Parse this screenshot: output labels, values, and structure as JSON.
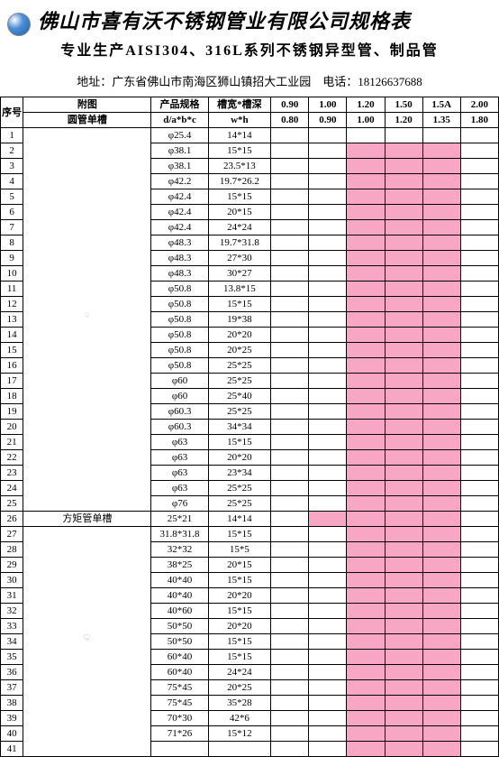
{
  "header": {
    "title": "佛山市喜有沃不锈钢管业有限公司规格表",
    "subtitle": "专业生产AISI304、316L系列不锈钢异型管、制品管",
    "address_label": "地址：",
    "address": "广东省佛山市南海区狮山镇招大工业园",
    "phone_label": "电话：",
    "phone": "18126637688"
  },
  "table": {
    "seq_header": "序号",
    "diagram_header": "附图",
    "spec_header": "产品规格",
    "slot_header": "槽宽*槽深",
    "spec_sub": "d/a*b*c",
    "slot_sub": "w*h",
    "thick_headers_1": [
      "0.90",
      "1.00",
      "1.20",
      "1.50",
      "1.5A",
      "2.00"
    ],
    "thick_headers_2": [
      "0.80",
      "0.90",
      "1.00",
      "1.20",
      "1.35",
      "1.80"
    ],
    "diagram_label_1": "圆管单槽",
    "diagram_label_2": "方矩管单槽",
    "rows": [
      {
        "n": 1,
        "spec": "φ25.4",
        "slot": "14*14",
        "p": [
          0,
          0,
          0,
          0,
          0,
          0
        ]
      },
      {
        "n": 2,
        "spec": "φ38.1",
        "slot": "15*15",
        "p": [
          0,
          0,
          1,
          1,
          1,
          0
        ]
      },
      {
        "n": 3,
        "spec": "φ38.1",
        "slot": "23.5*13",
        "p": [
          0,
          0,
          1,
          1,
          1,
          0
        ]
      },
      {
        "n": 4,
        "spec": "φ42.2",
        "slot": "19.7*26.2",
        "p": [
          0,
          0,
          1,
          1,
          1,
          0
        ]
      },
      {
        "n": 5,
        "spec": "φ42.4",
        "slot": "15*15",
        "p": [
          0,
          0,
          1,
          1,
          1,
          0
        ]
      },
      {
        "n": 6,
        "spec": "φ42.4",
        "slot": "20*15",
        "p": [
          0,
          0,
          1,
          1,
          1,
          0
        ]
      },
      {
        "n": 7,
        "spec": "φ42.4",
        "slot": "24*24",
        "p": [
          0,
          0,
          1,
          1,
          1,
          0
        ]
      },
      {
        "n": 8,
        "spec": "φ48.3",
        "slot": "19.7*31.8",
        "p": [
          0,
          0,
          1,
          1,
          1,
          0
        ]
      },
      {
        "n": 9,
        "spec": "φ48.3",
        "slot": "27*30",
        "p": [
          0,
          0,
          1,
          1,
          1,
          0
        ]
      },
      {
        "n": 10,
        "spec": "φ48.3",
        "slot": "30*27",
        "p": [
          0,
          0,
          1,
          1,
          1,
          0
        ]
      },
      {
        "n": 11,
        "spec": "φ50.8",
        "slot": "13.8*15",
        "p": [
          0,
          0,
          1,
          1,
          1,
          0
        ]
      },
      {
        "n": 12,
        "spec": "φ50.8",
        "slot": "15*15",
        "p": [
          0,
          0,
          1,
          1,
          1,
          0
        ]
      },
      {
        "n": 13,
        "spec": "φ50.8",
        "slot": "19*38",
        "p": [
          0,
          0,
          1,
          1,
          1,
          0
        ]
      },
      {
        "n": 14,
        "spec": "φ50.8",
        "slot": "20*20",
        "p": [
          0,
          0,
          1,
          1,
          1,
          0
        ]
      },
      {
        "n": 15,
        "spec": "φ50.8",
        "slot": "20*25",
        "p": [
          0,
          0,
          1,
          1,
          1,
          0
        ]
      },
      {
        "n": 16,
        "spec": "φ50.8",
        "slot": "25*25",
        "p": [
          0,
          0,
          1,
          1,
          1,
          0
        ]
      },
      {
        "n": 17,
        "spec": "φ60",
        "slot": "25*25",
        "p": [
          0,
          0,
          1,
          1,
          1,
          0
        ]
      },
      {
        "n": 18,
        "spec": "φ60",
        "slot": "25*40",
        "p": [
          0,
          0,
          1,
          1,
          1,
          0
        ]
      },
      {
        "n": 19,
        "spec": "φ60.3",
        "slot": "25*25",
        "p": [
          0,
          0,
          1,
          1,
          1,
          0
        ]
      },
      {
        "n": 20,
        "spec": "φ60.3",
        "slot": "34*34",
        "p": [
          0,
          0,
          1,
          1,
          1,
          0
        ]
      },
      {
        "n": 21,
        "spec": "φ63",
        "slot": "15*15",
        "p": [
          0,
          0,
          1,
          1,
          1,
          0
        ]
      },
      {
        "n": 22,
        "spec": "φ63",
        "slot": "20*20",
        "p": [
          0,
          0,
          1,
          1,
          1,
          0
        ]
      },
      {
        "n": 23,
        "spec": "φ63",
        "slot": "23*34",
        "p": [
          0,
          0,
          1,
          1,
          1,
          0
        ]
      },
      {
        "n": 24,
        "spec": "φ63",
        "slot": "25*25",
        "p": [
          0,
          0,
          1,
          1,
          1,
          0
        ]
      },
      {
        "n": 25,
        "spec": "φ76",
        "slot": "25*25",
        "p": [
          0,
          0,
          1,
          1,
          1,
          0
        ]
      },
      {
        "n": 26,
        "spec": "25*21",
        "slot": "14*14",
        "p": [
          0,
          1,
          1,
          1,
          1,
          0
        ]
      },
      {
        "n": 27,
        "spec": "31.8*31.8",
        "slot": "15*15",
        "p": [
          0,
          0,
          1,
          1,
          1,
          0
        ]
      },
      {
        "n": 28,
        "spec": "32*32",
        "slot": "15*5",
        "p": [
          0,
          0,
          1,
          1,
          1,
          0
        ]
      },
      {
        "n": 29,
        "spec": "38*25",
        "slot": "20*15",
        "p": [
          0,
          0,
          1,
          1,
          1,
          0
        ]
      },
      {
        "n": 30,
        "spec": "40*40",
        "slot": "15*15",
        "p": [
          0,
          0,
          1,
          1,
          1,
          0
        ]
      },
      {
        "n": 31,
        "spec": "40*40",
        "slot": "20*20",
        "p": [
          0,
          0,
          1,
          1,
          1,
          0
        ]
      },
      {
        "n": 32,
        "spec": "40*60",
        "slot": "15*15",
        "p": [
          0,
          0,
          1,
          1,
          1,
          0
        ]
      },
      {
        "n": 33,
        "spec": "50*50",
        "slot": "20*20",
        "p": [
          0,
          0,
          1,
          1,
          1,
          0
        ]
      },
      {
        "n": 34,
        "spec": "50*50",
        "slot": "15*15",
        "p": [
          0,
          0,
          1,
          1,
          1,
          0
        ]
      },
      {
        "n": 35,
        "spec": "60*40",
        "slot": "15*15",
        "p": [
          0,
          0,
          1,
          1,
          1,
          0
        ]
      },
      {
        "n": 36,
        "spec": "60*40",
        "slot": "24*24",
        "p": [
          0,
          0,
          1,
          1,
          1,
          0
        ]
      },
      {
        "n": 37,
        "spec": "75*45",
        "slot": "20*25",
        "p": [
          0,
          0,
          1,
          1,
          1,
          0
        ]
      },
      {
        "n": 38,
        "spec": "75*45",
        "slot": "35*28",
        "p": [
          0,
          0,
          1,
          1,
          1,
          0
        ]
      },
      {
        "n": 39,
        "spec": "70*30",
        "slot": "42*6",
        "p": [
          0,
          0,
          1,
          1,
          1,
          0
        ]
      },
      {
        "n": 40,
        "spec": "71*26",
        "slot": "15*12",
        "p": [
          0,
          0,
          1,
          1,
          1,
          0
        ]
      },
      {
        "n": 41,
        "spec": "",
        "slot": "",
        "p": [
          0,
          0,
          1,
          1,
          1,
          0
        ]
      }
    ],
    "colors": {
      "pink": "#f7a7c4",
      "border": "#000000",
      "bg": "#ffffff",
      "diagram_line": "#888888",
      "diagram_label": "#cc0033"
    }
  }
}
